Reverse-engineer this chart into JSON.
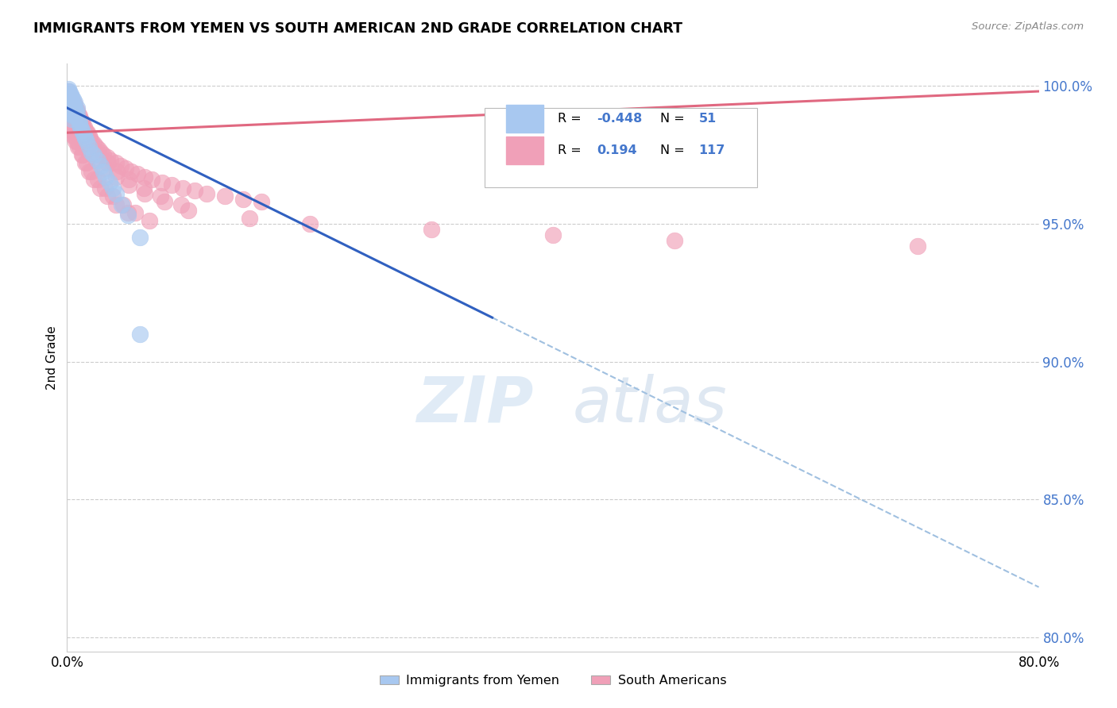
{
  "title": "IMMIGRANTS FROM YEMEN VS SOUTH AMERICAN 2ND GRADE CORRELATION CHART",
  "source": "Source: ZipAtlas.com",
  "ylabel": "2nd Grade",
  "xlim": [
    0.0,
    0.8
  ],
  "ylim": [
    0.795,
    1.008
  ],
  "grid_color": "#cccccc",
  "background_color": "#ffffff",
  "blue_color": "#A8C8F0",
  "pink_color": "#F0A0B8",
  "blue_line_color": "#3060C0",
  "pink_line_color": "#E06880",
  "dashed_line_color": "#A0C0E0",
  "legend_R_blue": "-0.448",
  "legend_N_blue": "51",
  "legend_R_pink": "0.194",
  "legend_N_pink": "117",
  "blue_scatter_x": [
    0.001,
    0.001,
    0.002,
    0.002,
    0.002,
    0.003,
    0.003,
    0.003,
    0.003,
    0.004,
    0.004,
    0.004,
    0.004,
    0.005,
    0.005,
    0.005,
    0.006,
    0.006,
    0.007,
    0.007,
    0.008,
    0.009,
    0.01,
    0.01,
    0.011,
    0.012,
    0.013,
    0.014,
    0.015,
    0.016,
    0.018,
    0.02,
    0.022,
    0.025,
    0.028,
    0.03,
    0.032,
    0.035,
    0.038,
    0.04,
    0.045,
    0.05,
    0.06,
    0.001,
    0.002,
    0.003,
    0.004,
    0.005,
    0.006,
    0.008,
    0.06
  ],
  "blue_scatter_y": [
    0.998,
    0.996,
    0.997,
    0.995,
    0.993,
    0.996,
    0.994,
    0.992,
    0.99,
    0.994,
    0.992,
    0.99,
    0.988,
    0.993,
    0.991,
    0.989,
    0.992,
    0.99,
    0.991,
    0.989,
    0.99,
    0.988,
    0.987,
    0.986,
    0.985,
    0.984,
    0.983,
    0.982,
    0.981,
    0.98,
    0.978,
    0.976,
    0.975,
    0.973,
    0.971,
    0.969,
    0.967,
    0.965,
    0.963,
    0.961,
    0.957,
    0.953,
    0.945,
    0.999,
    0.998,
    0.997,
    0.996,
    0.995,
    0.994,
    0.992,
    0.91
  ],
  "pink_scatter_x": [
    0.001,
    0.001,
    0.001,
    0.002,
    0.002,
    0.002,
    0.003,
    0.003,
    0.003,
    0.004,
    0.004,
    0.004,
    0.005,
    0.005,
    0.005,
    0.006,
    0.006,
    0.007,
    0.007,
    0.008,
    0.008,
    0.009,
    0.009,
    0.01,
    0.01,
    0.011,
    0.012,
    0.012,
    0.013,
    0.014,
    0.015,
    0.016,
    0.017,
    0.018,
    0.019,
    0.02,
    0.022,
    0.024,
    0.026,
    0.028,
    0.03,
    0.033,
    0.036,
    0.04,
    0.044,
    0.048,
    0.053,
    0.058,
    0.064,
    0.07,
    0.078,
    0.086,
    0.095,
    0.105,
    0.115,
    0.13,
    0.145,
    0.16,
    0.003,
    0.005,
    0.007,
    0.009,
    0.012,
    0.015,
    0.018,
    0.022,
    0.027,
    0.033,
    0.04,
    0.05,
    0.002,
    0.004,
    0.006,
    0.008,
    0.01,
    0.013,
    0.016,
    0.02,
    0.025,
    0.031,
    0.038,
    0.046,
    0.056,
    0.068,
    0.003,
    0.005,
    0.008,
    0.011,
    0.015,
    0.02,
    0.026,
    0.033,
    0.041,
    0.051,
    0.063,
    0.077,
    0.094,
    0.003,
    0.006,
    0.009,
    0.013,
    0.018,
    0.024,
    0.031,
    0.04,
    0.051,
    0.064,
    0.08,
    0.1,
    0.15,
    0.2,
    0.3,
    0.4,
    0.5,
    0.7
  ],
  "pink_scatter_y": [
    0.998,
    0.996,
    0.994,
    0.997,
    0.995,
    0.993,
    0.996,
    0.994,
    0.992,
    0.995,
    0.993,
    0.991,
    0.994,
    0.992,
    0.99,
    0.993,
    0.991,
    0.992,
    0.99,
    0.991,
    0.989,
    0.99,
    0.988,
    0.989,
    0.987,
    0.988,
    0.987,
    0.986,
    0.986,
    0.985,
    0.984,
    0.983,
    0.983,
    0.982,
    0.981,
    0.98,
    0.979,
    0.978,
    0.977,
    0.976,
    0.975,
    0.974,
    0.973,
    0.972,
    0.971,
    0.97,
    0.969,
    0.968,
    0.967,
    0.966,
    0.965,
    0.964,
    0.963,
    0.962,
    0.961,
    0.96,
    0.959,
    0.958,
    0.984,
    0.982,
    0.98,
    0.978,
    0.975,
    0.972,
    0.969,
    0.966,
    0.963,
    0.96,
    0.957,
    0.954,
    0.986,
    0.984,
    0.982,
    0.98,
    0.978,
    0.975,
    0.972,
    0.969,
    0.966,
    0.963,
    0.96,
    0.957,
    0.954,
    0.951,
    0.99,
    0.988,
    0.986,
    0.984,
    0.981,
    0.978,
    0.975,
    0.972,
    0.969,
    0.966,
    0.963,
    0.96,
    0.957,
    0.988,
    0.985,
    0.982,
    0.979,
    0.976,
    0.973,
    0.97,
    0.967,
    0.964,
    0.961,
    0.958,
    0.955,
    0.952,
    0.95,
    0.948,
    0.946,
    0.944,
    0.942
  ]
}
